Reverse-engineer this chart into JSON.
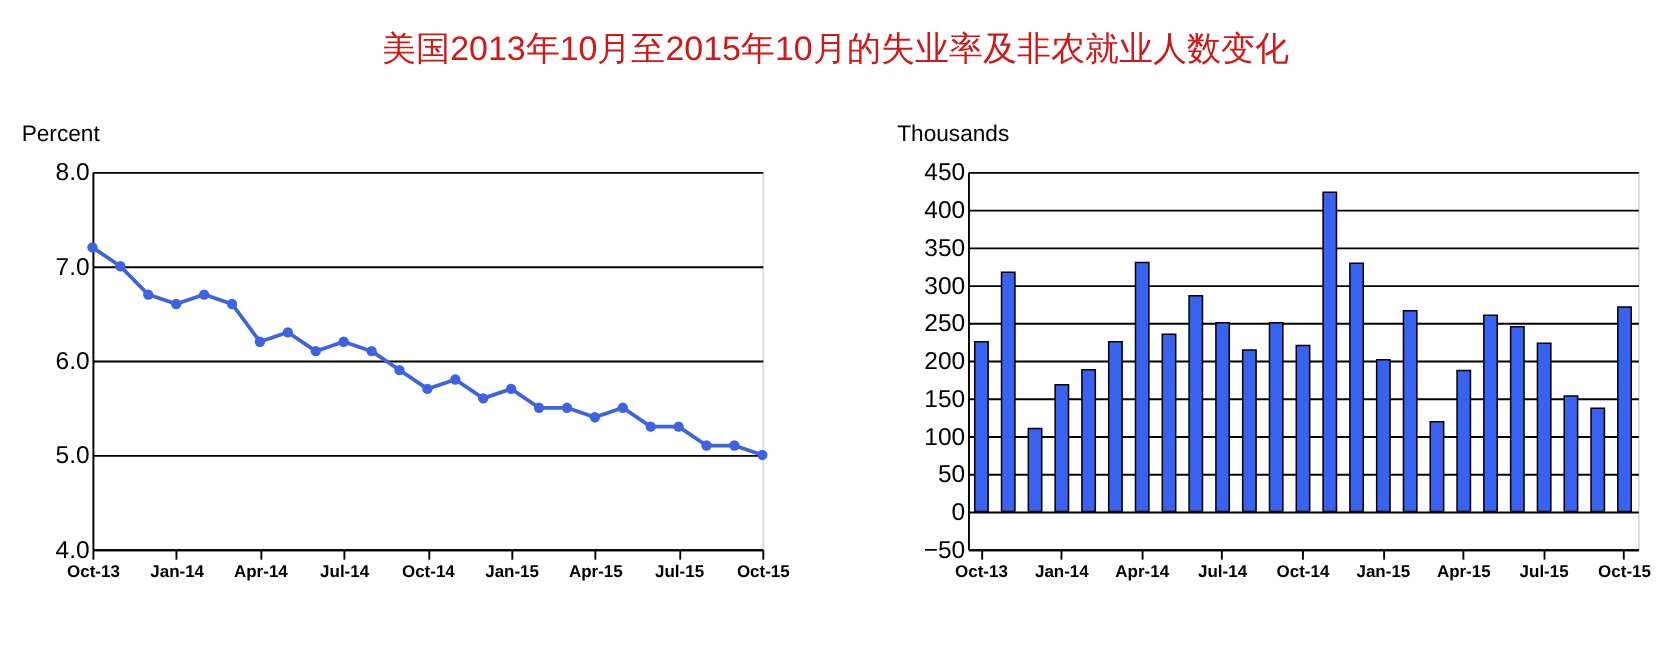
{
  "chart_data": [
    {
      "type": "line",
      "title": "美国2013年10月至2015年10月的失业率及非农就业人数变化",
      "ylabel": "Percent",
      "categories": [
        "Oct-13",
        null,
        null,
        "Jan-14",
        null,
        null,
        "Apr-14",
        null,
        null,
        "Jul-14",
        null,
        null,
        "Oct-14",
        null,
        null,
        "Jan-15",
        null,
        null,
        "Apr-15",
        null,
        null,
        "Jul-15",
        null,
        null,
        "Oct-15"
      ],
      "series": [
        {
          "color": "#3d63e0",
          "values": [
            7.2,
            7.0,
            6.7,
            6.6,
            6.7,
            6.6,
            6.2,
            6.3,
            6.1,
            6.2,
            6.1,
            5.9,
            5.7,
            5.8,
            5.6,
            5.7,
            5.5,
            5.5,
            5.4,
            5.5,
            5.3,
            5.3,
            5.1,
            5.1,
            5.0
          ]
        }
      ],
      "ylim": [
        4,
        8
      ],
      "yticks": [
        {
          "value": 4,
          "label": "4.0"
        },
        {
          "value": 5,
          "label": "5.0"
        },
        {
          "value": 6,
          "label": "6.0"
        },
        {
          "value": 7,
          "label": "7.0"
        },
        {
          "value": 8,
          "label": "8.0"
        }
      ],
      "grid": "y",
      "marker": "circle",
      "line_style": "solid"
    },
    {
      "type": "bar",
      "ylabel": "Thousands",
      "categories": [
        "Oct-13",
        null,
        null,
        "Jan-14",
        null,
        null,
        "Apr-14",
        null,
        null,
        "Jul-14",
        null,
        null,
        "Oct-14",
        null,
        null,
        "Jan-15",
        null,
        null,
        "Apr-15",
        null,
        null,
        "Jul-15",
        null,
        null,
        "Oct-15"
      ],
      "series": [
        {
          "color": "#3a62f0",
          "values": [
            225,
            317,
            110,
            168,
            188,
            225,
            330,
            235,
            286,
            250,
            214,
            250,
            220,
            423,
            329,
            201,
            266,
            119,
            187,
            260,
            245,
            223,
            153,
            137,
            271
          ]
        }
      ],
      "ylim": [
        -50,
        450
      ],
      "yticks": [
        -50,
        0,
        50,
        100,
        150,
        200,
        250,
        300,
        350,
        400,
        450
      ],
      "grid": "y"
    }
  ]
}
